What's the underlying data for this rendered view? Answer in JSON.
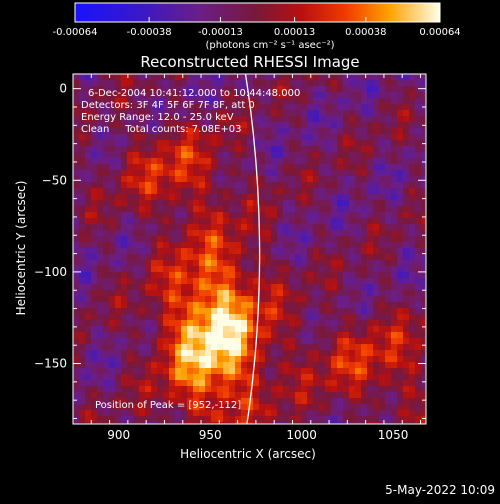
{
  "chart_data": {
    "type": "heatmap",
    "title": "Reconstructed RHESSI Image",
    "xlabel": "Heliocentric X (arcsec)",
    "ylabel": "Heliocentric Y (arcsec)",
    "xlim": [
      875,
      1068
    ],
    "ylim": [
      -183,
      8
    ],
    "x_ticks": [
      900,
      950,
      1000,
      1050
    ],
    "y_ticks": [
      0,
      -50,
      -100,
      -150
    ],
    "colorbar": {
      "label": "(photons cm⁻² s⁻¹ asec⁻²)",
      "range": [
        -0.00064,
        0.00064
      ],
      "tick_labels": [
        "-0.00064",
        "-0.00038",
        "-0.00013",
        "0.00013",
        "0.00038",
        "0.00064"
      ],
      "tick_values": [
        -0.00064,
        -0.00038,
        -0.00013,
        0.00013,
        0.00038,
        0.00064
      ]
    },
    "annotations": [
      "6-Dec-2004 10:41:12.000 to 10:44:48.000",
      "Detectors: 3F 4F 5F 6F 7F 8F, att 0",
      "Energy Range: 12.0 - 25.0 keV",
      "Clean     Total counts: 7.08E+03"
    ],
    "peak_label": "Position of Peak = [952,-112]",
    "peak": [
      952,
      -112
    ],
    "footer_date": "5-May-2022 10:09"
  }
}
